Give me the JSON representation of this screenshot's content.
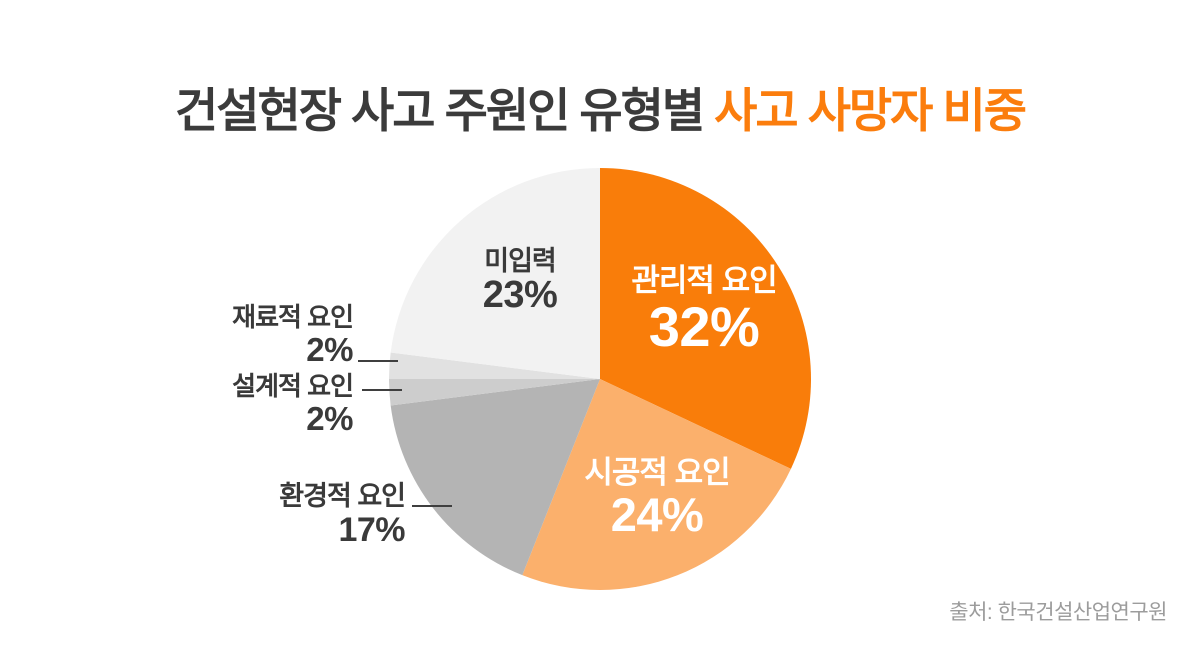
{
  "title": {
    "main": "건설현장 사고 주원인 유형별 ",
    "highlight": "사고 사망자 비중"
  },
  "source": "출처: 한국건설산업연구원",
  "colors": {
    "title_dark": "#3b3b3b",
    "accent_orange": "#fb7d0d",
    "label_dark": "#3a3a3a",
    "source_gray": "#9c9c9c",
    "leader_line": "#3f3f3f",
    "background": "#ffffff"
  },
  "chart_data": {
    "type": "pie",
    "title": "건설현장 사고 주원인 유형별 사고 사망자 비중",
    "start_angle_deg": 0,
    "direction": "clockwise",
    "legend_position": "none",
    "slices": [
      {
        "label": "관리적 요인",
        "value": 32,
        "pct_text": "32%",
        "color": "#f97d0a",
        "label_placement": "inside",
        "label_color": "#ffffff"
      },
      {
        "label": "시공적 요인",
        "value": 24,
        "pct_text": "24%",
        "color": "#fbb06c",
        "label_placement": "inside",
        "label_color": "#ffffff"
      },
      {
        "label": "환경적 요인",
        "value": 17,
        "pct_text": "17%",
        "color": "#b4b4b4",
        "label_placement": "outside",
        "label_color": "#3a3a3a"
      },
      {
        "label": "설계적 요인",
        "value": 2,
        "pct_text": "2%",
        "color": "#cdcdcd",
        "label_placement": "outside",
        "label_color": "#3a3a3a"
      },
      {
        "label": "재료적 요인",
        "value": 2,
        "pct_text": "2%",
        "color": "#e1e1e1",
        "label_placement": "outside",
        "label_color": "#3a3a3a"
      },
      {
        "label": "미입력",
        "value": 23,
        "pct_text": "23%",
        "color": "#f2f2f2",
        "label_placement": "inside",
        "label_color": "#3a3a3a"
      }
    ]
  }
}
